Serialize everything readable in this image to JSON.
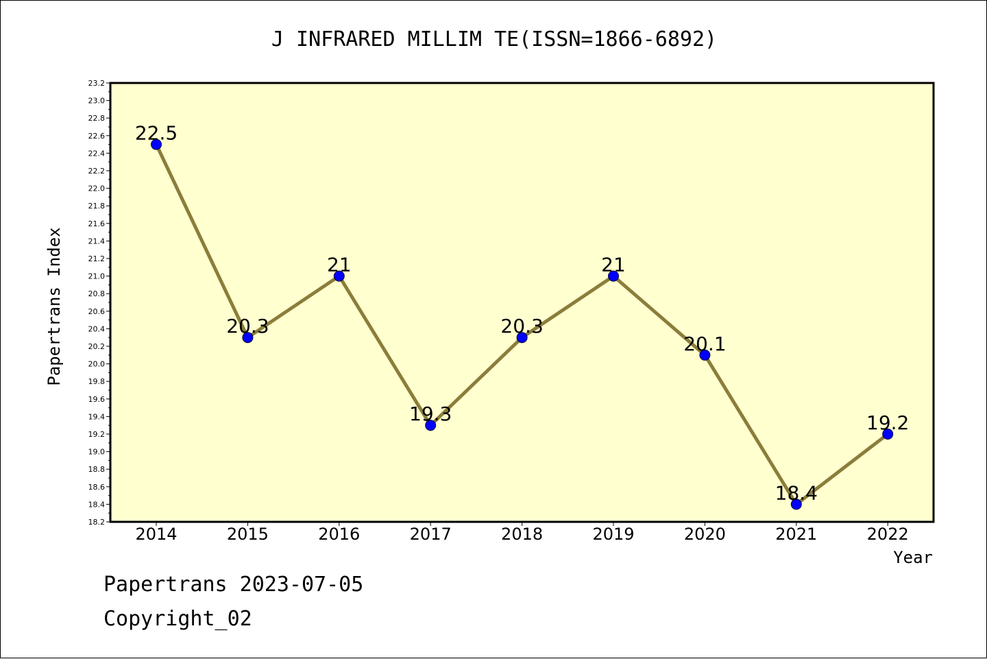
{
  "chart_data": {
    "type": "line",
    "title": "J INFRARED MILLIM TE(ISSN=1866-6892)",
    "xlabel": "Year",
    "ylabel": "Papertrans Index",
    "categories": [
      "2014",
      "2015",
      "2016",
      "2017",
      "2018",
      "2019",
      "2020",
      "2021",
      "2022"
    ],
    "series": [
      {
        "values": [
          22.5,
          20.3,
          21,
          19.3,
          20.3,
          21,
          20.1,
          18.4,
          19.2
        ],
        "labels": [
          "22.5",
          "20.3",
          "21",
          "19.3",
          "20.3",
          "21",
          "20.1",
          "18.4",
          "19.2"
        ]
      }
    ],
    "ylim": [
      18.2,
      23.2
    ],
    "ytick_labels": [
      "18.2",
      "18.4",
      "18.6",
      "18.8",
      "19.0",
      "19.2",
      "19.4",
      "19.6",
      "19.8",
      "20.0",
      "20.2",
      "20.4",
      "20.6",
      "20.8",
      "21.0",
      "21.2",
      "21.4",
      "21.6",
      "21.8",
      "22.0",
      "22.2",
      "22.4",
      "22.6",
      "22.8",
      "23.0",
      "23.2"
    ],
    "grid": false,
    "colors": {
      "plot_background": "#ffffd0",
      "line": "#8b7d3a",
      "marker": "#0000ff"
    }
  },
  "footer": {
    "line1": "Papertrans 2023-07-05",
    "line2": "Copyright_02"
  }
}
